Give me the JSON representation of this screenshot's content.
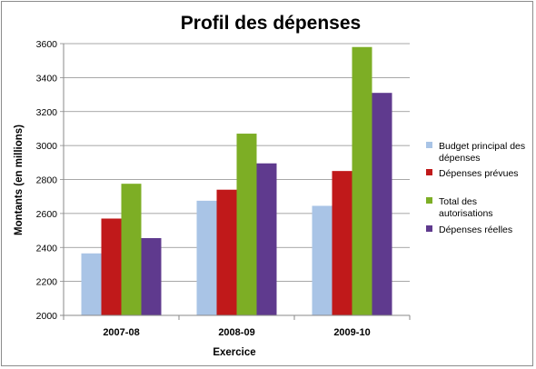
{
  "chart_data": {
    "type": "bar",
    "title": "Profil des dépenses",
    "xlabel": "Exercice",
    "ylabel": "Montants (en millions)",
    "categories": [
      "2007-08",
      "2008-09",
      "2009-10"
    ],
    "ylim": [
      2000,
      3600
    ],
    "yticks": [
      2000,
      2200,
      2400,
      2600,
      2800,
      3000,
      3200,
      3400,
      3600
    ],
    "grid": true,
    "legend_position": "right",
    "series": [
      {
        "name": "Budget principal des dépenses",
        "legend_lines": [
          "Budget principal des",
          "dépenses"
        ],
        "color": "#a9c4e6",
        "values": [
          2365,
          2675,
          2645
        ]
      },
      {
        "name": "Dépenses prévues",
        "legend_lines": [
          "Dépenses prévues"
        ],
        "color": "#c0191a",
        "values": [
          2570,
          2740,
          2850
        ]
      },
      {
        "name": "Total des autorisations",
        "legend_lines": [
          "Total des",
          "autorisations"
        ],
        "color": "#7dae25",
        "values": [
          2775,
          3070,
          3580
        ]
      },
      {
        "name": "Dépenses réelles",
        "legend_lines": [
          "Dépenses réelles"
        ],
        "color": "#5f3a8e",
        "values": [
          2455,
          2895,
          3310
        ]
      }
    ]
  }
}
